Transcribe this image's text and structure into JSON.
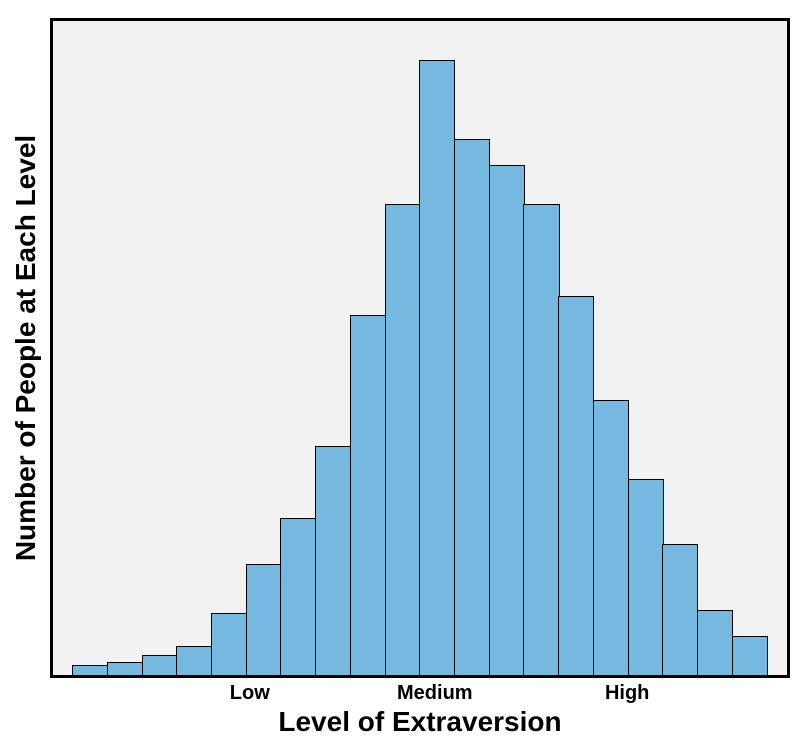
{
  "chart": {
    "type": "histogram",
    "background_color": "#ffffff",
    "plot_background_color": "#f2f2f2",
    "border_color": "#000000",
    "border_width": 3,
    "bar_fill_color": "#75b8e0",
    "bar_stroke_color": "#000000",
    "bar_stroke_width": 1.5,
    "y_axis": {
      "title": "Number of People at Each Level",
      "title_fontsize": 28,
      "title_fontweight": 800
    },
    "x_axis": {
      "title": "Level of Extraversion",
      "title_fontsize": 28,
      "title_fontweight": 800,
      "tick_labels": [
        {
          "label": "Low",
          "position_pct": 27
        },
        {
          "label": "Medium",
          "position_pct": 52
        },
        {
          "label": "High",
          "position_pct": 78
        }
      ],
      "tick_fontsize": 20,
      "tick_fontweight": 700
    },
    "bars": [
      {
        "value": 1.5
      },
      {
        "value": 2.0
      },
      {
        "value": 3.0
      },
      {
        "value": 4.5
      },
      {
        "value": 9.5
      },
      {
        "value": 17.0
      },
      {
        "value": 24.0
      },
      {
        "value": 35.0
      },
      {
        "value": 55.0
      },
      {
        "value": 72.0
      },
      {
        "value": 94.0
      },
      {
        "value": 82.0
      },
      {
        "value": 78.0
      },
      {
        "value": 72.0
      },
      {
        "value": 58.0
      },
      {
        "value": 42.0
      },
      {
        "value": 30.0
      },
      {
        "value": 20.0
      },
      {
        "value": 10.0
      },
      {
        "value": 6.0
      }
    ],
    "ymax": 100
  }
}
